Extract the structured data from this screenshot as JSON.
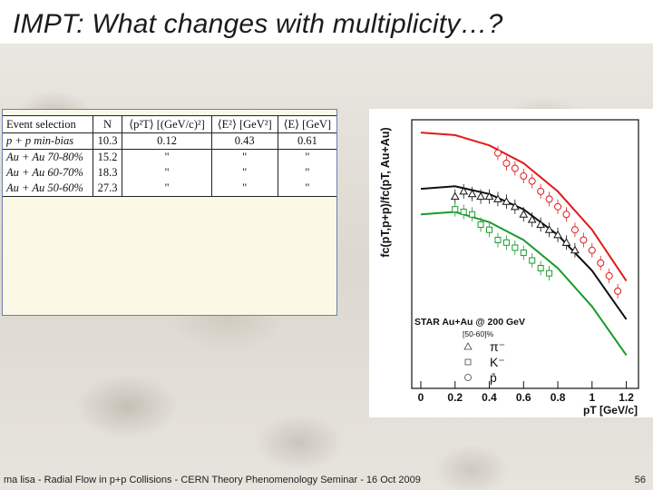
{
  "slide": {
    "title": "IMPT: What changes with multiplicity…?",
    "footer": "ma lisa - Radial Flow in p+p Collisions - CERN Theory Phenomenology Seminar - 16 Oct 2009",
    "page_number": "56"
  },
  "table": {
    "headers": [
      "Event selection",
      "N",
      "⟨p²T⟩ [(GeV/c)²]",
      "⟨E²⟩ [GeV²]",
      "⟨E⟩ [GeV]"
    ],
    "rows": [
      [
        "p + p min-bias",
        "10.3",
        "0.12",
        "0.43",
        "0.61"
      ],
      [
        "Au + Au 70-80%",
        "15.2",
        "\"",
        "\"",
        "\""
      ],
      [
        "Au + Au 60-70%",
        "18.3",
        "\"",
        "\"",
        "\""
      ],
      [
        "Au + Au 50-60%",
        "27.3",
        "\"",
        "\"",
        "\""
      ]
    ]
  },
  "chart_data": {
    "type": "scatter",
    "ylabel": "fc(pT,p+p)/fc(pT, Au+Au)",
    "xlabel": "pT [GeV/c]",
    "x_ticks": [
      "0",
      "0.2",
      "0.4",
      "0.6",
      "0.8",
      "1",
      "1.2"
    ],
    "xlim": [
      0,
      1.25
    ],
    "legend": {
      "title": "STAR Au+Au @ 200 GeV",
      "subtitle": "[50-60]%",
      "entries": [
        {
          "symbol": "triangle",
          "label": "π⁻"
        },
        {
          "symbol": "square",
          "label": "K⁻"
        },
        {
          "symbol": "circle",
          "label": "p̄"
        }
      ],
      "placement": "bottom-left"
    },
    "series": [
      {
        "name": "p̄",
        "color": "#e01a1a",
        "marker": "circle",
        "points": [
          [
            0.45,
            0.92
          ],
          [
            0.5,
            0.88
          ],
          [
            0.55,
            0.86
          ],
          [
            0.6,
            0.83
          ],
          [
            0.65,
            0.81
          ],
          [
            0.7,
            0.77
          ],
          [
            0.75,
            0.74
          ],
          [
            0.8,
            0.71
          ],
          [
            0.85,
            0.68
          ],
          [
            0.9,
            0.62
          ],
          [
            0.95,
            0.58
          ],
          [
            1.0,
            0.54
          ],
          [
            1.05,
            0.49
          ],
          [
            1.1,
            0.44
          ],
          [
            1.15,
            0.38
          ]
        ]
      },
      {
        "name": "π⁻",
        "color": "#111111",
        "marker": "triangle",
        "points": [
          [
            0.2,
            0.75
          ],
          [
            0.25,
            0.77
          ],
          [
            0.3,
            0.76
          ],
          [
            0.35,
            0.75
          ],
          [
            0.4,
            0.75
          ],
          [
            0.45,
            0.74
          ],
          [
            0.5,
            0.73
          ],
          [
            0.55,
            0.71
          ],
          [
            0.6,
            0.68
          ],
          [
            0.65,
            0.66
          ],
          [
            0.7,
            0.64
          ],
          [
            0.75,
            0.62
          ],
          [
            0.8,
            0.6
          ],
          [
            0.85,
            0.57
          ],
          [
            0.9,
            0.54
          ]
        ]
      },
      {
        "name": "K⁻",
        "color": "#1a9a2a",
        "marker": "square",
        "points": [
          [
            0.2,
            0.7
          ],
          [
            0.25,
            0.69
          ],
          [
            0.3,
            0.68
          ],
          [
            0.35,
            0.64
          ],
          [
            0.4,
            0.62
          ],
          [
            0.45,
            0.58
          ],
          [
            0.5,
            0.57
          ],
          [
            0.55,
            0.55
          ],
          [
            0.6,
            0.53
          ],
          [
            0.65,
            0.5
          ],
          [
            0.7,
            0.47
          ],
          [
            0.75,
            0.45
          ]
        ]
      }
    ],
    "curves": [
      {
        "color": "#e01a1a",
        "points": [
          [
            0,
            1.0
          ],
          [
            0.2,
            0.99
          ],
          [
            0.4,
            0.95
          ],
          [
            0.6,
            0.88
          ],
          [
            0.8,
            0.77
          ],
          [
            1.0,
            0.62
          ],
          [
            1.2,
            0.42
          ]
        ]
      },
      {
        "color": "#111111",
        "points": [
          [
            0,
            0.78
          ],
          [
            0.2,
            0.79
          ],
          [
            0.4,
            0.76
          ],
          [
            0.6,
            0.7
          ],
          [
            0.8,
            0.6
          ],
          [
            1.0,
            0.46
          ],
          [
            1.2,
            0.27
          ]
        ]
      },
      {
        "color": "#1a9a2a",
        "points": [
          [
            0,
            0.68
          ],
          [
            0.2,
            0.69
          ],
          [
            0.4,
            0.65
          ],
          [
            0.6,
            0.58
          ],
          [
            0.8,
            0.47
          ],
          [
            1.0,
            0.32
          ],
          [
            1.2,
            0.13
          ]
        ]
      }
    ]
  }
}
